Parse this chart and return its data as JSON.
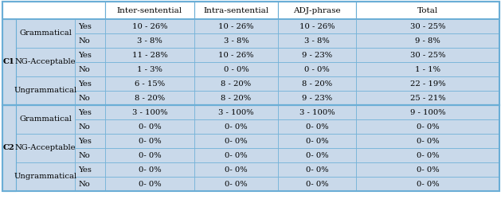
{
  "col_headers": [
    "Inter-sentential",
    "Intra-sentential",
    "ADJ-phrase",
    "Total"
  ],
  "row_groups": [
    {
      "level": "C1",
      "categories": [
        {
          "name": "Grammatical",
          "rows": [
            {
              "yn": "Yes",
              "inter": "10 - 26%",
              "intra": "10 - 26%",
              "adj": "10 - 26%",
              "total": "30 - 25%"
            },
            {
              "yn": "No",
              "inter": "3 - 8%",
              "intra": "3 - 8%",
              "adj": "3 - 8%",
              "total": "9 - 8%"
            }
          ]
        },
        {
          "name": "NG-Acceptable",
          "rows": [
            {
              "yn": "Yes",
              "inter": "11 - 28%",
              "intra": "10 - 26%",
              "adj": "9 - 23%",
              "total": "30 - 25%"
            },
            {
              "yn": "No",
              "inter": "1 - 3%",
              "intra": "0 - 0%",
              "adj": "0 - 0%",
              "total": "1 - 1%"
            }
          ]
        },
        {
          "name": "Ungrammatical",
          "rows": [
            {
              "yn": "Yes",
              "inter": "6 - 15%",
              "intra": "8 - 20%",
              "adj": "8 - 20%",
              "total": "22 - 19%"
            },
            {
              "yn": "No",
              "inter": "8 - 20%",
              "intra": "8 - 20%",
              "adj": "9 - 23%",
              "total": "25 - 21%"
            }
          ]
        }
      ]
    },
    {
      "level": "C2",
      "categories": [
        {
          "name": "Grammatical",
          "rows": [
            {
              "yn": "Yes",
              "inter": "3 - 100%",
              "intra": "3 - 100%",
              "adj": "3 - 100%",
              "total": "9 - 100%"
            },
            {
              "yn": "No",
              "inter": "0- 0%",
              "intra": "0- 0%",
              "adj": "0- 0%",
              "total": "0- 0%"
            }
          ]
        },
        {
          "name": "NG-Acceptable",
          "rows": [
            {
              "yn": "Yes",
              "inter": "0- 0%",
              "intra": "0- 0%",
              "adj": "0- 0%",
              "total": "0- 0%"
            },
            {
              "yn": "No",
              "inter": "0- 0%",
              "intra": "0- 0%",
              "adj": "0- 0%",
              "total": "0- 0%"
            }
          ]
        },
        {
          "name": "Ungrammatical",
          "rows": [
            {
              "yn": "Yes",
              "inter": "0- 0%",
              "intra": "0- 0%",
              "adj": "0- 0%",
              "total": "0- 0%"
            },
            {
              "yn": "No",
              "inter": "0- 0%",
              "intra": "0- 0%",
              "adj": "0- 0%",
              "total": "0- 0%"
            }
          ]
        }
      ]
    }
  ],
  "bg_light": "#c9d9ea",
  "bg_white": "#ffffff",
  "border_color": "#6baed6",
  "font_size": 7.2,
  "header_font_size": 7.5
}
